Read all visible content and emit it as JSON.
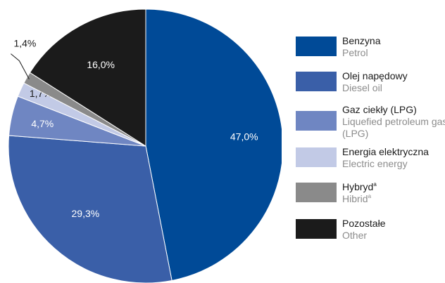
{
  "chart_data": {
    "type": "pie",
    "series": [
      {
        "label": "47,0%",
        "value": 47.0,
        "name_pl": "Benzyna",
        "name_en": "Petrol",
        "sup": "",
        "color": "#004a97"
      },
      {
        "label": "29,3%",
        "value": 29.3,
        "name_pl": "Olej napędowy",
        "name_en": "Diesel oil",
        "sup": "",
        "color": "#3a5fa8"
      },
      {
        "label": "4,7%",
        "value": 4.7,
        "name_pl": "Gaz ciekły (LPG)",
        "name_en": "Liquefied petroleum gas (LPG)",
        "sup": "",
        "color": "#6f86c2"
      },
      {
        "label": "1,7%",
        "value": 1.7,
        "name_pl": "Energia elektryczna",
        "name_en": "Electric energy",
        "sup": "",
        "color": "#c2cae6"
      },
      {
        "label": "1,4%",
        "value": 1.4,
        "name_pl": "Hybryd",
        "name_en": "Hibrid",
        "sup": "a",
        "color": "#8a8a8a"
      },
      {
        "label": "16,0%",
        "value": 16.0,
        "name_pl": "Pozostałe",
        "name_en": "Other",
        "sup": "",
        "color": "#1b1b1b"
      }
    ]
  }
}
